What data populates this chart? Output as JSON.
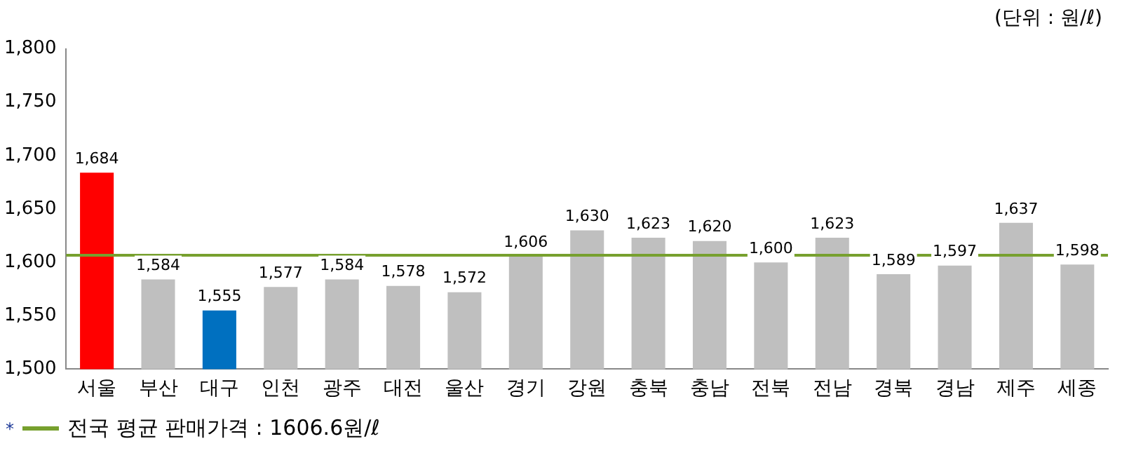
{
  "chart_data": {
    "type": "bar",
    "categories": [
      "서울",
      "부산",
      "대구",
      "인천",
      "광주",
      "대전",
      "울산",
      "경기",
      "강원",
      "충북",
      "충남",
      "전북",
      "전남",
      "경북",
      "경남",
      "제주",
      "세종"
    ],
    "values": [
      1684,
      1584,
      1555,
      1577,
      1584,
      1578,
      1572,
      1606,
      1630,
      1623,
      1620,
      1600,
      1623,
      1589,
      1597,
      1637,
      1598
    ],
    "colors": [
      "#ff0000",
      "#bfbfbf",
      "#0070c0",
      "#bfbfbf",
      "#bfbfbf",
      "#bfbfbf",
      "#bfbfbf",
      "#bfbfbf",
      "#bfbfbf",
      "#bfbfbf",
      "#bfbfbf",
      "#bfbfbf",
      "#bfbfbf",
      "#bfbfbf",
      "#bfbfbf",
      "#bfbfbf",
      "#bfbfbf"
    ],
    "ylim": [
      1500,
      1800
    ],
    "yticks": [
      {
        "value": 1500,
        "label": "1,500"
      },
      {
        "value": 1550,
        "label": "1,550"
      },
      {
        "value": 1600,
        "label": "1,600"
      },
      {
        "value": 1650,
        "label": "1,650"
      },
      {
        "value": 1700,
        "label": "1,700"
      },
      {
        "value": 1750,
        "label": "1,750"
      },
      {
        "value": 1800,
        "label": "1,800"
      }
    ],
    "grid": false,
    "value_labels": [
      "1,684",
      "1,584",
      "1,555",
      "1,577",
      "1,584",
      "1,578",
      "1,572",
      "1,606",
      "1,630",
      "1,623",
      "1,620",
      "1,600",
      "1,623",
      "1,589",
      "1,597",
      "1,637",
      "1,598"
    ],
    "ref_lines": [
      {
        "axis": "y",
        "value": 1606.6,
        "label": "전국 평균 판매가격 : 1606.6원/ℓ",
        "color": "#77a02e"
      }
    ],
    "legend": "bottom left",
    "annotations": [
      "(단위 : 원/ℓ)",
      "*"
    ]
  }
}
